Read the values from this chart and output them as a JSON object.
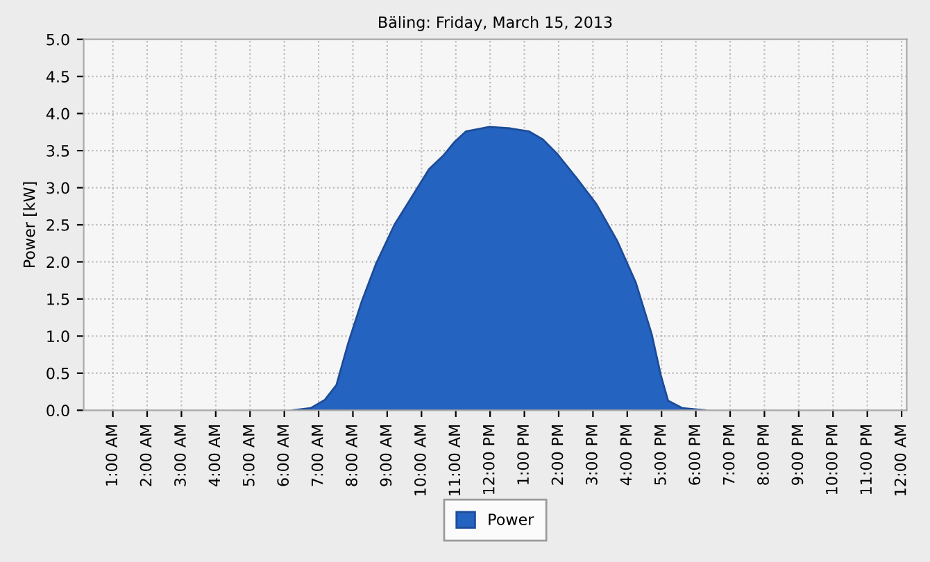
{
  "chart_data": {
    "type": "area",
    "title": "Bäling: Friday, March 15, 2013",
    "ylabel": "Power [kW]",
    "x": [
      6.23,
      6.77,
      7.18,
      7.52,
      7.86,
      8.26,
      8.67,
      9.21,
      9.75,
      10.22,
      10.63,
      10.97,
      11.3,
      11.98,
      12.59,
      13.13,
      13.54,
      13.95,
      14.49,
      15.1,
      15.71,
      16.25,
      16.71,
      16.98,
      17.19,
      17.6,
      18.3
    ],
    "series": [
      {
        "name": "Power",
        "color": "#2563c0",
        "values": [
          0.0,
          0.03,
          0.14,
          0.34,
          0.9,
          1.47,
          1.97,
          2.5,
          2.9,
          3.25,
          3.43,
          3.62,
          3.76,
          3.82,
          3.8,
          3.76,
          3.65,
          3.46,
          3.15,
          2.78,
          2.28,
          1.72,
          1.03,
          0.47,
          0.13,
          0.03,
          0.0
        ]
      }
    ],
    "xlim": [
      0.15,
      24.15
    ],
    "ylim": [
      0,
      5
    ],
    "xticks": [
      {
        "value": 1,
        "label": "1:00 AM"
      },
      {
        "value": 2,
        "label": "2:00 AM"
      },
      {
        "value": 3,
        "label": "3:00 AM"
      },
      {
        "value": 4,
        "label": "4:00 AM"
      },
      {
        "value": 5,
        "label": "5:00 AM"
      },
      {
        "value": 6,
        "label": "6:00 AM"
      },
      {
        "value": 7,
        "label": "7:00 AM"
      },
      {
        "value": 8,
        "label": "8:00 AM"
      },
      {
        "value": 9,
        "label": "9:00 AM"
      },
      {
        "value": 10,
        "label": "10:00 AM"
      },
      {
        "value": 11,
        "label": "11:00 AM"
      },
      {
        "value": 12,
        "label": "12:00 PM"
      },
      {
        "value": 13,
        "label": "1:00 PM"
      },
      {
        "value": 14,
        "label": "2:00 PM"
      },
      {
        "value": 15,
        "label": "3:00 PM"
      },
      {
        "value": 16,
        "label": "4:00 PM"
      },
      {
        "value": 17,
        "label": "5:00 PM"
      },
      {
        "value": 18,
        "label": "6:00 PM"
      },
      {
        "value": 19,
        "label": "7:00 PM"
      },
      {
        "value": 20,
        "label": "8:00 PM"
      },
      {
        "value": 21,
        "label": "9:00 PM"
      },
      {
        "value": 22,
        "label": "10:00 PM"
      },
      {
        "value": 23,
        "label": "11:00 PM"
      },
      {
        "value": 24,
        "label": "12:00 AM"
      }
    ],
    "yticks": [
      {
        "value": 0,
        "label": "0.0"
      },
      {
        "value": 0.5,
        "label": "0.5"
      },
      {
        "value": 1,
        "label": "1.0"
      },
      {
        "value": 1.5,
        "label": "1.5"
      },
      {
        "value": 2,
        "label": "2.0"
      },
      {
        "value": 2.5,
        "label": "2.5"
      },
      {
        "value": 3,
        "label": "3.0"
      },
      {
        "value": 3.5,
        "label": "3.5"
      },
      {
        "value": 4,
        "label": "4.0"
      },
      {
        "value": 4.5,
        "label": "4.5"
      },
      {
        "value": 5,
        "label": "5.0"
      }
    ],
    "grid": true,
    "legend": "bottom"
  }
}
